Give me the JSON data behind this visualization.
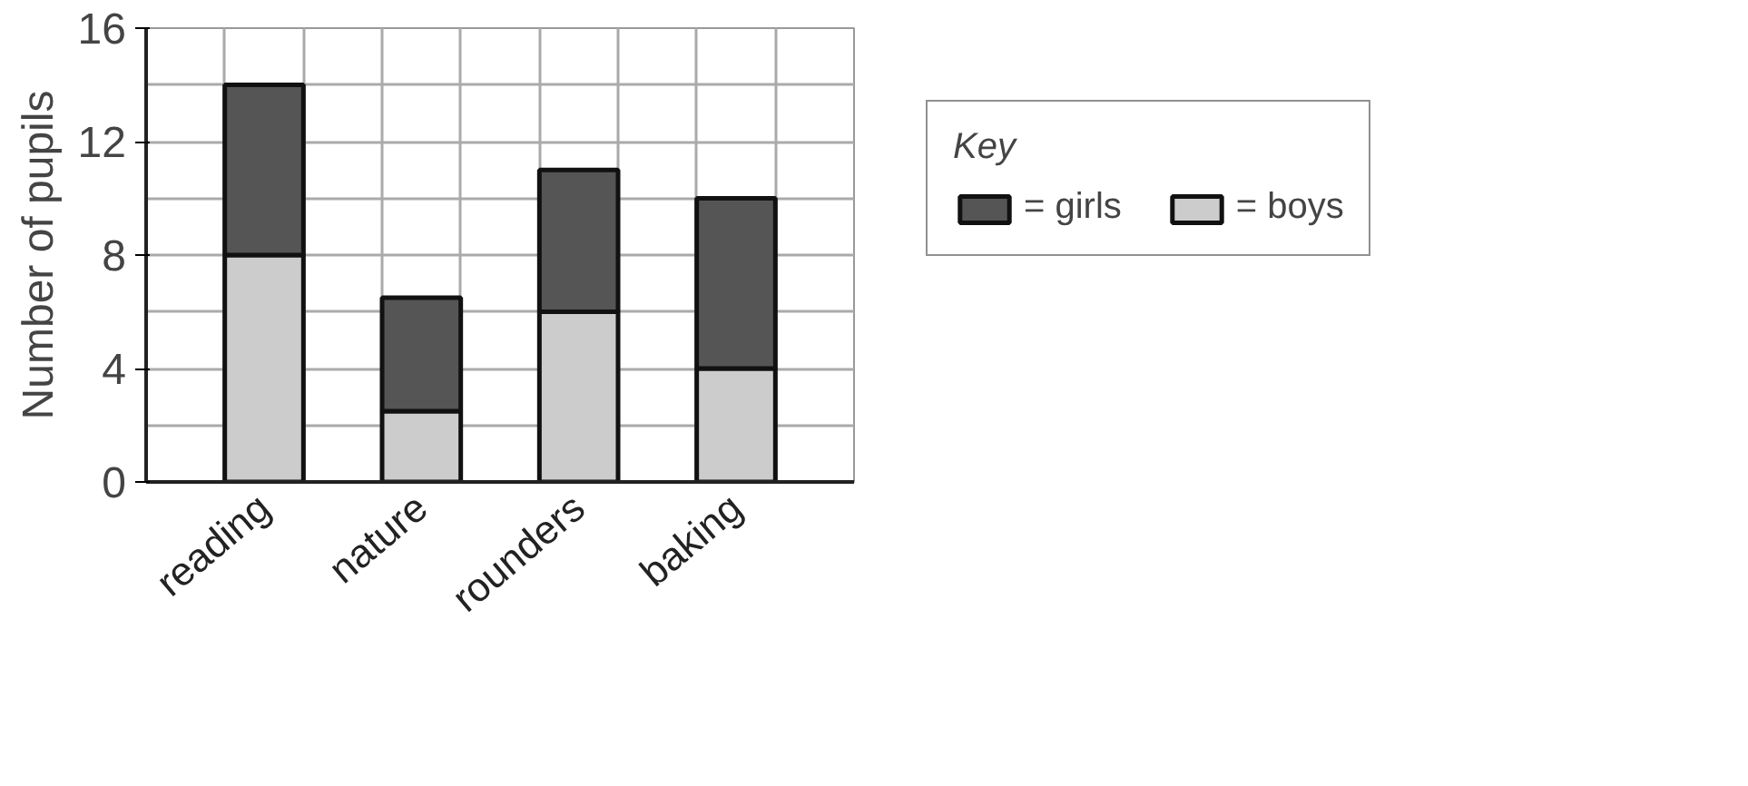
{
  "chart_data": {
    "type": "bar",
    "stacked": true,
    "ylabel": "Number of pupils",
    "legend_title": "Key",
    "categories": [
      "reading",
      "nature",
      "rounders",
      "baking"
    ],
    "series": [
      {
        "name": "= boys",
        "color": "#cccccc",
        "values": [
          8,
          2.5,
          6,
          4
        ]
      },
      {
        "name": "= girls",
        "color": "#555555",
        "values": [
          6,
          4,
          5,
          6
        ]
      }
    ],
    "ylim": [
      0,
      16
    ],
    "yticks": [
      0,
      4,
      8,
      12,
      16
    ],
    "grid": true,
    "legend": "right"
  }
}
